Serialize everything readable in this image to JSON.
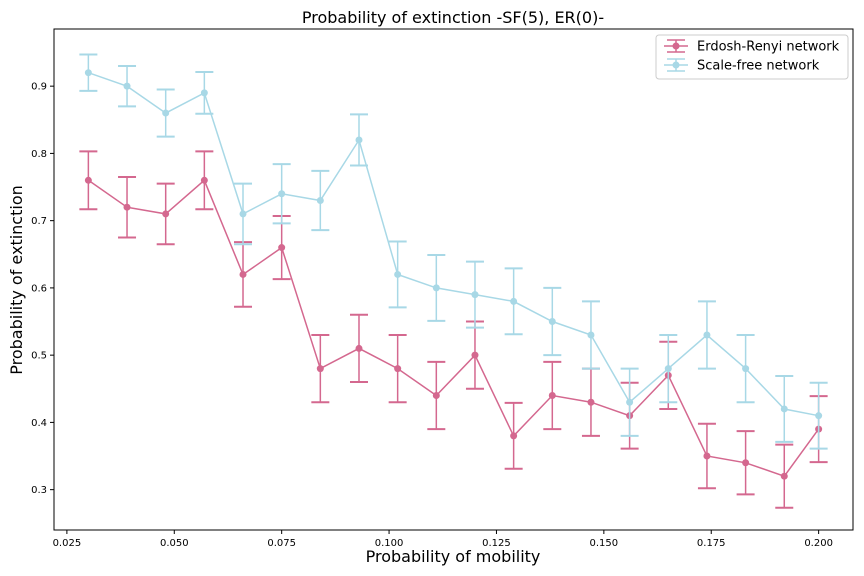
{
  "chart_data": {
    "type": "line",
    "title": "Probability of extinction -SF(5), ER(0)-",
    "xlabel": "Probability of mobility",
    "ylabel": "Probability of extinction",
    "xlim": [
      0.022,
      0.208
    ],
    "ylim": [
      0.24,
      0.985
    ],
    "x_ticks": [
      0.025,
      0.05,
      0.075,
      0.1,
      0.125,
      0.15,
      0.175,
      0.2
    ],
    "x_tick_labels": [
      "0.025",
      "0.050",
      "0.075",
      "0.100",
      "0.125",
      "0.150",
      "0.175",
      "0.200"
    ],
    "y_ticks": [
      0.3,
      0.4,
      0.5,
      0.6,
      0.7,
      0.8,
      0.9
    ],
    "y_tick_labels": [
      "0.3",
      "0.4",
      "0.5",
      "0.6",
      "0.7",
      "0.8",
      "0.9"
    ],
    "grid": false,
    "legend_position": "top-right",
    "x": [
      0.03,
      0.039,
      0.048,
      0.057,
      0.066,
      0.075,
      0.084,
      0.093,
      0.102,
      0.111,
      0.12,
      0.129,
      0.138,
      0.147,
      0.156,
      0.165,
      0.174,
      0.183,
      0.192,
      0.2
    ],
    "series": [
      {
        "name": "Erdosh-Renyi network",
        "color": "#d4688f",
        "values": [
          0.76,
          0.72,
          0.71,
          0.76,
          0.62,
          0.66,
          0.48,
          0.51,
          0.48,
          0.44,
          0.5,
          0.38,
          0.44,
          0.43,
          0.41,
          0.47,
          0.35,
          0.34,
          0.32,
          0.39
        ],
        "error": [
          0.043,
          0.045,
          0.045,
          0.043,
          0.048,
          0.047,
          0.05,
          0.05,
          0.05,
          0.05,
          0.05,
          0.049,
          0.05,
          0.05,
          0.049,
          0.05,
          0.048,
          0.047,
          0.047,
          0.049
        ]
      },
      {
        "name": "Scale-free network",
        "color": "#a8d8e6",
        "values": [
          0.92,
          0.9,
          0.86,
          0.89,
          0.71,
          0.74,
          0.73,
          0.82,
          0.62,
          0.6,
          0.59,
          0.58,
          0.55,
          0.53,
          0.43,
          0.48,
          0.53,
          0.48,
          0.42,
          0.41
        ],
        "error": [
          0.027,
          0.03,
          0.035,
          0.031,
          0.045,
          0.044,
          0.044,
          0.038,
          0.049,
          0.049,
          0.049,
          0.049,
          0.05,
          0.05,
          0.05,
          0.05,
          0.05,
          0.05,
          0.049,
          0.049
        ]
      }
    ]
  }
}
